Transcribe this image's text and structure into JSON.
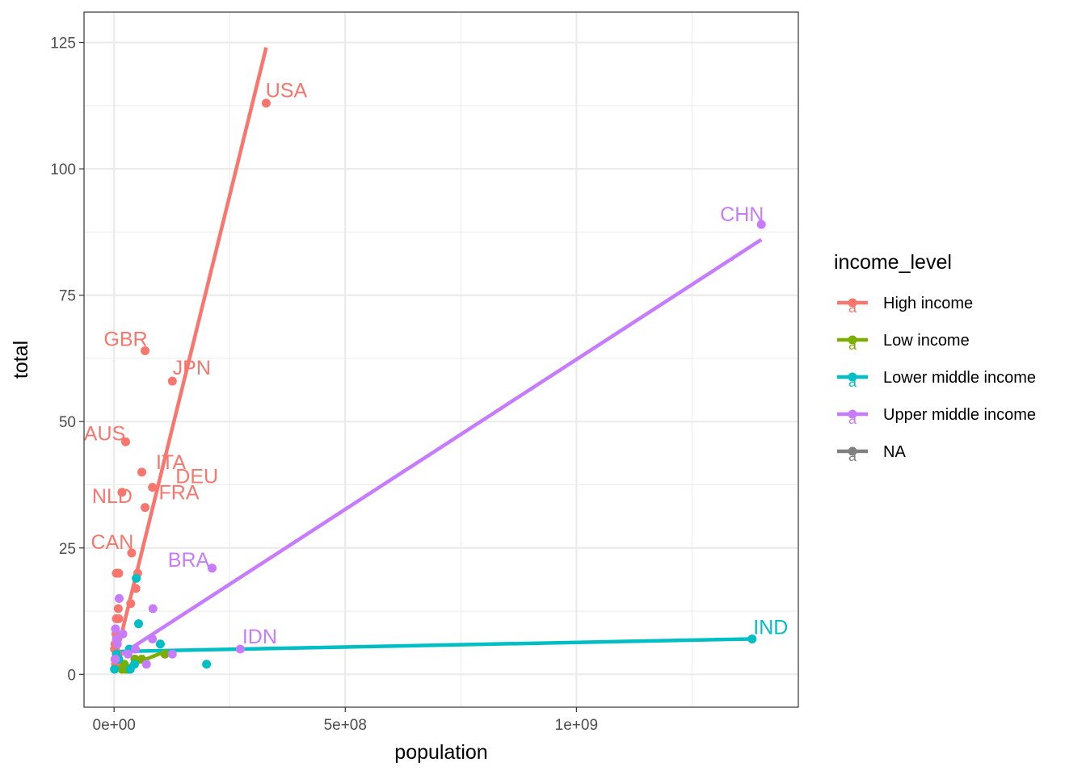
{
  "chart_data": {
    "type": "scatter",
    "xlabel": "population",
    "ylabel": "total",
    "xlim": [
      -65000000,
      1480000000
    ],
    "ylim": [
      -6.5,
      131
    ],
    "x_ticks": [
      0,
      500000000,
      1000000000
    ],
    "x_tick_labels": [
      "0e+00",
      "5e+08",
      "1e+09"
    ],
    "y_ticks": [
      0,
      25,
      50,
      75,
      100,
      125
    ],
    "y_tick_labels": [
      "0",
      "25",
      "50",
      "75",
      "100",
      "125"
    ],
    "x_minor_ticks": [
      250000000,
      750000000,
      1250000000
    ],
    "y_minor_ticks": [
      12.5,
      37.5,
      62.5,
      87.5,
      112.5
    ],
    "grid": true,
    "legend": {
      "title": "income_level",
      "placement": "right",
      "key_glyph": "a",
      "entries": [
        {
          "name": "High income",
          "color": "#F8766D"
        },
        {
          "name": "Low income",
          "color": "#7CAE00"
        },
        {
          "name": "Lower middle income",
          "color": "#00BFC4"
        },
        {
          "name": "Upper middle income",
          "color": "#C77CFF"
        },
        {
          "name": "NA",
          "color": "#7F7F7F"
        }
      ]
    },
    "series": [
      {
        "name": "High income",
        "color": "#F8766D",
        "points": [
          [
            329000000,
            113
          ],
          [
            67000000,
            64
          ],
          [
            126000000,
            58
          ],
          [
            25000000,
            46
          ],
          [
            60000000,
            40
          ],
          [
            83000000,
            37
          ],
          [
            17000000,
            36
          ],
          [
            67000000,
            33
          ],
          [
            38000000,
            24
          ],
          [
            5000000,
            20
          ],
          [
            10000000,
            20
          ],
          [
            51000000,
            20
          ],
          [
            47000000,
            17
          ],
          [
            36000000,
            14
          ],
          [
            9000000,
            13
          ],
          [
            5000000,
            11
          ],
          [
            10000000,
            11
          ],
          [
            1000000,
            5
          ],
          [
            2000000,
            3
          ],
          [
            3000000,
            2
          ],
          [
            8000000,
            4
          ],
          [
            4000000,
            8
          ],
          [
            1000000,
            1
          ],
          [
            2000000,
            6
          ]
        ],
        "fit": [
          [
            0,
            2
          ],
          [
            329000000,
            124
          ]
        ]
      },
      {
        "name": "Low income",
        "color": "#7CAE00",
        "points": [
          [
            17000000,
            1
          ],
          [
            22000000,
            2
          ],
          [
            30000000,
            1
          ],
          [
            45000000,
            3
          ],
          [
            110000000,
            4
          ],
          [
            60000000,
            3
          ],
          [
            25000000,
            1
          ]
        ],
        "fit": [
          [
            15000000,
            1
          ],
          [
            110000000,
            4.5
          ]
        ]
      },
      {
        "name": "Lower middle income",
        "color": "#00BFC4",
        "points": [
          [
            1380000000,
            7
          ],
          [
            48000000,
            19
          ],
          [
            53000000,
            10
          ],
          [
            100000000,
            6
          ],
          [
            200000000,
            2
          ],
          [
            33000000,
            5
          ],
          [
            1000000,
            1
          ],
          [
            5000000,
            4
          ],
          [
            10000000,
            3
          ],
          [
            35000000,
            1
          ],
          [
            44000000,
            2
          ]
        ],
        "fit": [
          [
            0,
            4.5
          ],
          [
            1380000000,
            7
          ]
        ]
      },
      {
        "name": "Upper middle income",
        "color": "#C77CFF",
        "points": [
          [
            1400000000,
            89
          ],
          [
            212000000,
            21
          ],
          [
            273000000,
            5
          ],
          [
            84000000,
            13
          ],
          [
            83000000,
            7
          ],
          [
            126000000,
            4
          ],
          [
            70000000,
            2
          ],
          [
            11000000,
            15
          ],
          [
            3000000,
            9
          ],
          [
            5000000,
            7
          ],
          [
            19000000,
            8
          ],
          [
            3000000,
            3
          ],
          [
            30000000,
            4
          ],
          [
            46000000,
            5
          ],
          [
            7000000,
            6
          ]
        ],
        "fit": [
          [
            0,
            3
          ],
          [
            1400000000,
            86
          ]
        ]
      },
      {
        "name": "NA",
        "color": "#7F7F7F",
        "points": [],
        "fit": null
      }
    ],
    "annotations": [
      {
        "label": "USA",
        "x": 329000000,
        "y": 113,
        "series": "High income"
      },
      {
        "label": "GBR",
        "x": 67000000,
        "y": 64,
        "series": "High income"
      },
      {
        "label": "JPN",
        "x": 126000000,
        "y": 58,
        "series": "High income"
      },
      {
        "label": "AUS",
        "x": 25000000,
        "y": 46,
        "series": "High income"
      },
      {
        "label": "ITA",
        "x": 60000000,
        "y": 40,
        "series": "High income"
      },
      {
        "label": "NLD",
        "x": 17000000,
        "y": 36,
        "series": "High income"
      },
      {
        "label": "DEU",
        "x": 83000000,
        "y": 37,
        "series": "High income"
      },
      {
        "label": "FRA",
        "x": 67000000,
        "y": 33,
        "series": "High income"
      },
      {
        "label": "CAN",
        "x": 38000000,
        "y": 24,
        "series": "High income"
      },
      {
        "label": "CHN",
        "x": 1400000000,
        "y": 89,
        "series": "Upper middle income"
      },
      {
        "label": "BRA",
        "x": 212000000,
        "y": 21,
        "series": "Upper middle income"
      },
      {
        "label": "IDN",
        "x": 273000000,
        "y": 5,
        "series": "Upper middle income"
      },
      {
        "label": "IND",
        "x": 1380000000,
        "y": 7,
        "series": "Lower middle income"
      }
    ]
  }
}
